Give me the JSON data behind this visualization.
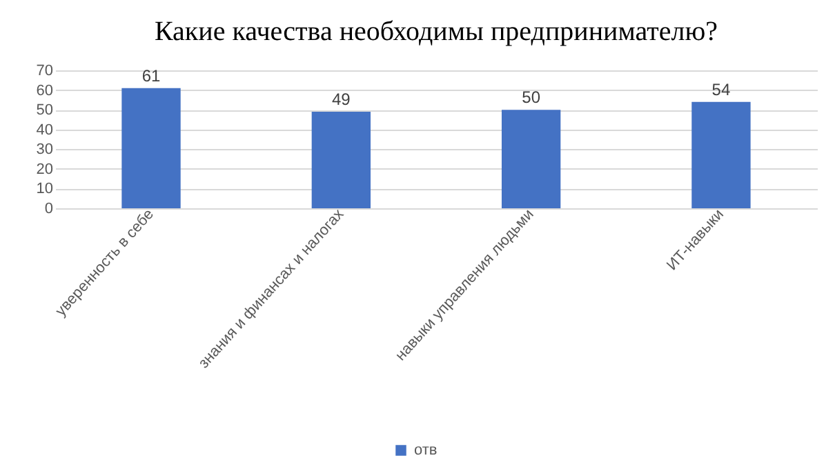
{
  "chart_data": {
    "type": "bar",
    "title": "Какие качества необходимы предпринимателю?",
    "categories": [
      "уверенность в себе",
      "знания и финансах и налогах",
      "навыки управления людьми",
      "ИТ-навыки"
    ],
    "series": [
      {
        "name": "отв",
        "color": "#4472c4",
        "values": [
          61,
          49,
          50,
          54
        ]
      }
    ],
    "ylim": [
      0,
      70
    ],
    "yticks": [
      0,
      10,
      20,
      30,
      40,
      50,
      60,
      70
    ],
    "grid": "y",
    "legend": "bottom",
    "data_labels": true
  }
}
